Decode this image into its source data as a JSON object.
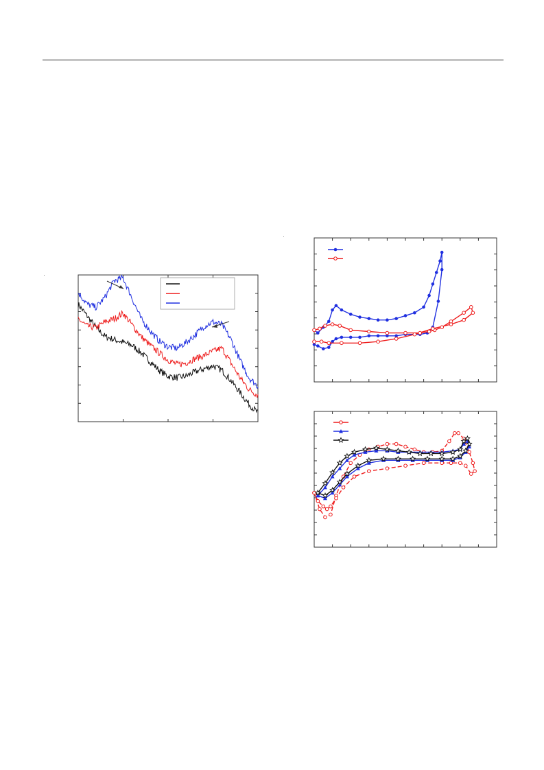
{
  "page": {},
  "colors": {
    "blue": "#1f2fe0",
    "red": "#ee1c1c",
    "black": "#111111",
    "frame": "#333333"
  },
  "chart_data": [
    {
      "type": "line",
      "description_id": "left-spectra",
      "x": [
        0,
        0.05,
        0.1,
        0.15,
        0.2,
        0.25,
        0.3,
        0.35,
        0.4,
        0.45,
        0.5,
        0.55,
        0.6,
        0.65,
        0.7,
        0.75,
        0.8,
        0.85,
        0.9,
        0.95,
        1.0
      ],
      "series": [
        {
          "color_key": "black",
          "values": [
            0.8,
            0.72,
            0.64,
            0.58,
            0.56,
            0.54,
            0.52,
            0.47,
            0.41,
            0.35,
            0.31,
            0.3,
            0.31,
            0.34,
            0.36,
            0.38,
            0.35,
            0.28,
            0.2,
            0.12,
            0.06
          ]
        },
        {
          "color_key": "red",
          "values": [
            0.7,
            0.65,
            0.64,
            0.68,
            0.7,
            0.74,
            0.66,
            0.58,
            0.52,
            0.47,
            0.42,
            0.39,
            0.4,
            0.43,
            0.45,
            0.48,
            0.5,
            0.4,
            0.3,
            0.22,
            0.18
          ]
        },
        {
          "color_key": "blue",
          "values": [
            0.88,
            0.8,
            0.78,
            0.85,
            0.96,
            0.98,
            0.84,
            0.7,
            0.62,
            0.55,
            0.51,
            0.5,
            0.54,
            0.59,
            0.65,
            0.68,
            0.66,
            0.56,
            0.42,
            0.3,
            0.24
          ]
        }
      ],
      "legend": [
        "",
        "",
        ""
      ],
      "legend_placement": "top-right",
      "ylim": [
        0,
        1
      ],
      "xlim": [
        0,
        1
      ],
      "grid": false
    },
    {
      "type": "line",
      "description_id": "right-top-cv",
      "series": [
        {
          "color_key": "blue",
          "marker": "filled-circle",
          "x": [
            0.0,
            0.02,
            0.05,
            0.08,
            0.1,
            0.12,
            0.15,
            0.2,
            0.25,
            0.3,
            0.35,
            0.4,
            0.45,
            0.5,
            0.55,
            0.6,
            0.63,
            0.65,
            0.67,
            0.69,
            0.7,
            0.7,
            0.68,
            0.65,
            0.62,
            0.58,
            0.55,
            0.5,
            0.45,
            0.4,
            0.35,
            0.3,
            0.25,
            0.2,
            0.15,
            0.12,
            0.1,
            0.08,
            0.05,
            0.02,
            0.0
          ],
          "y": [
            0.36,
            0.34,
            0.38,
            0.42,
            0.5,
            0.53,
            0.5,
            0.47,
            0.45,
            0.44,
            0.43,
            0.43,
            0.44,
            0.46,
            0.48,
            0.52,
            0.6,
            0.68,
            0.76,
            0.84,
            0.9,
            0.78,
            0.56,
            0.38,
            0.34,
            0.33,
            0.33,
            0.33,
            0.32,
            0.32,
            0.32,
            0.32,
            0.31,
            0.31,
            0.31,
            0.3,
            0.28,
            0.24,
            0.23,
            0.25,
            0.26
          ]
        },
        {
          "color_key": "red",
          "marker": "open-circle",
          "x": [
            0.0,
            0.03,
            0.06,
            0.1,
            0.14,
            0.2,
            0.3,
            0.4,
            0.5,
            0.58,
            0.63,
            0.66,
            0.7,
            0.75,
            0.82,
            0.86,
            0.87,
            0.82,
            0.75,
            0.65,
            0.55,
            0.45,
            0.35,
            0.25,
            0.15,
            0.08,
            0.04,
            0.0
          ],
          "y": [
            0.36,
            0.37,
            0.39,
            0.4,
            0.39,
            0.36,
            0.35,
            0.34,
            0.34,
            0.34,
            0.35,
            0.36,
            0.38,
            0.42,
            0.48,
            0.52,
            0.48,
            0.43,
            0.4,
            0.37,
            0.33,
            0.3,
            0.28,
            0.27,
            0.27,
            0.27,
            0.28,
            0.28
          ]
        }
      ],
      "legend": [
        "",
        ""
      ],
      "legend_placement": "top-left",
      "xlim": [
        0,
        1
      ],
      "ylim": [
        0,
        1
      ],
      "grid": false
    },
    {
      "type": "line",
      "description_id": "right-bottom-cv",
      "series": [
        {
          "color_key": "red",
          "marker": "open-circle",
          "x": [
            0.0,
            0.03,
            0.06,
            0.09,
            0.12,
            0.16,
            0.2,
            0.25,
            0.3,
            0.35,
            0.4,
            0.45,
            0.5,
            0.55,
            0.6,
            0.65,
            0.7,
            0.74,
            0.77,
            0.79,
            0.82,
            0.85,
            0.87,
            0.88,
            0.86,
            0.83,
            0.8,
            0.75,
            0.7,
            0.6,
            0.5,
            0.4,
            0.3,
            0.22,
            0.16,
            0.12,
            0.09,
            0.07,
            0.05,
            0.02,
            0.0
          ],
          "y": [
            0.4,
            0.28,
            0.22,
            0.24,
            0.38,
            0.52,
            0.62,
            0.68,
            0.72,
            0.74,
            0.76,
            0.76,
            0.74,
            0.72,
            0.7,
            0.7,
            0.71,
            0.78,
            0.84,
            0.84,
            0.8,
            0.7,
            0.62,
            0.56,
            0.54,
            0.6,
            0.62,
            0.62,
            0.62,
            0.62,
            0.6,
            0.58,
            0.56,
            0.52,
            0.44,
            0.36,
            0.3,
            0.28,
            0.3,
            0.34,
            0.4
          ]
        },
        {
          "color_key": "blue",
          "marker": "filled-triangle",
          "x": [
            0.02,
            0.06,
            0.1,
            0.14,
            0.18,
            0.22,
            0.28,
            0.34,
            0.4,
            0.46,
            0.52,
            0.58,
            0.64,
            0.7,
            0.76,
            0.8,
            0.82,
            0.84,
            0.85,
            0.83,
            0.8,
            0.76,
            0.7,
            0.62,
            0.54,
            0.46,
            0.38,
            0.3,
            0.24,
            0.18,
            0.14,
            0.1,
            0.06,
            0.02
          ],
          "y": [
            0.38,
            0.44,
            0.52,
            0.58,
            0.64,
            0.68,
            0.7,
            0.71,
            0.71,
            0.7,
            0.7,
            0.7,
            0.7,
            0.7,
            0.71,
            0.72,
            0.76,
            0.78,
            0.74,
            0.7,
            0.66,
            0.64,
            0.64,
            0.64,
            0.64,
            0.64,
            0.64,
            0.62,
            0.58,
            0.52,
            0.46,
            0.4,
            0.36,
            0.38
          ]
        },
        {
          "color_key": "black",
          "marker": "open-star",
          "x": [
            0.02,
            0.06,
            0.1,
            0.14,
            0.18,
            0.22,
            0.28,
            0.34,
            0.4,
            0.46,
            0.52,
            0.58,
            0.64,
            0.7,
            0.76,
            0.8,
            0.82,
            0.84,
            0.85,
            0.83,
            0.8,
            0.76,
            0.7,
            0.62,
            0.54,
            0.46,
            0.38,
            0.3,
            0.24,
            0.18,
            0.14,
            0.1,
            0.06,
            0.02
          ],
          "y": [
            0.4,
            0.47,
            0.55,
            0.62,
            0.67,
            0.7,
            0.72,
            0.73,
            0.72,
            0.71,
            0.7,
            0.69,
            0.69,
            0.69,
            0.7,
            0.72,
            0.78,
            0.8,
            0.76,
            0.71,
            0.67,
            0.65,
            0.65,
            0.65,
            0.65,
            0.65,
            0.65,
            0.64,
            0.6,
            0.54,
            0.48,
            0.42,
            0.38,
            0.4
          ]
        }
      ],
      "legend": [
        "",
        "",
        ""
      ],
      "legend_placement": "top-left",
      "xlim": [
        0,
        1
      ],
      "ylim": [
        0,
        1
      ],
      "grid": false
    }
  ]
}
